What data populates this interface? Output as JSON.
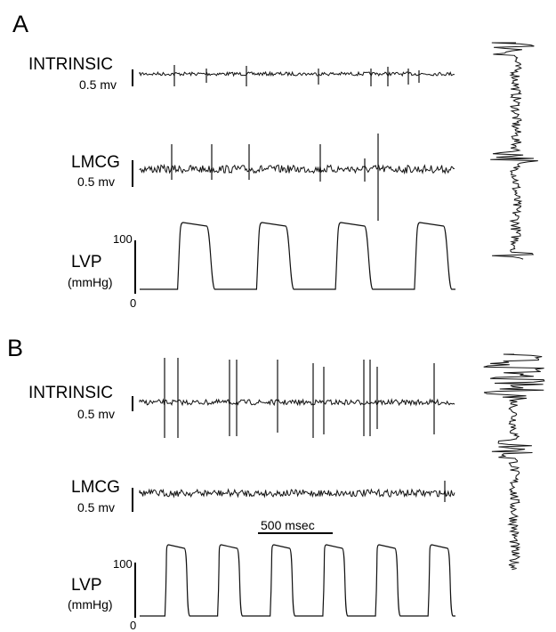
{
  "figure": {
    "panel_a": {
      "letter": "A",
      "intrinsic": {
        "label": "INTRINSIC",
        "scale": "0.5 mv"
      },
      "lmcg": {
        "label": "LMCG",
        "scale": "0.5 mv"
      },
      "lvp": {
        "label": "LVP",
        "unit": "(mmHg)",
        "y_max_label": "100",
        "y_min_label": "0",
        "beats": 4
      }
    },
    "panel_b": {
      "letter": "B",
      "intrinsic": {
        "label": "INTRINSIC",
        "scale": "0.5 mv"
      },
      "lmcg": {
        "label": "LMCG",
        "scale": "0.5 mv"
      },
      "lvp": {
        "label": "LVP",
        "unit": "(mmHg)",
        "y_max_label": "100",
        "y_min_label": "0",
        "beats": 6
      },
      "time_scale": "500 msec"
    },
    "colors": {
      "trace": "#111111",
      "background": "#ffffff"
    }
  }
}
